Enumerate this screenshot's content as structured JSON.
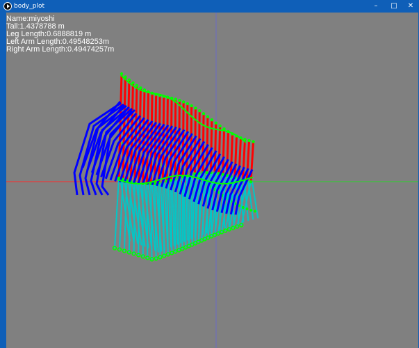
{
  "window": {
    "title": "body_plot",
    "minimize_glyph": "–",
    "maximize_glyph": "□",
    "close_glyph": "✕"
  },
  "info": {
    "name": "Name:miyoshi",
    "tall": "Tall:1.4378788 m",
    "leg_length": "Leg Length:0.6888819 m",
    "left_arm_length": "Left Arm Length:0.49548253m",
    "right_arm_length": "Right Arm Length:0.49474257m"
  },
  "colors": {
    "background": "#808080",
    "x_axis": "#ff2a2a",
    "x_axis_positive": "#2ad42a",
    "y_axis": "#6a6ac8",
    "torso": "#ff0000",
    "arm": "#0000ff",
    "leg": "#00c8c8",
    "joint": "#00ff00"
  },
  "icons": {
    "app": "app-icon",
    "minimize": "minimize-icon",
    "maximize": "maximize-icon",
    "close": "close-icon"
  }
}
